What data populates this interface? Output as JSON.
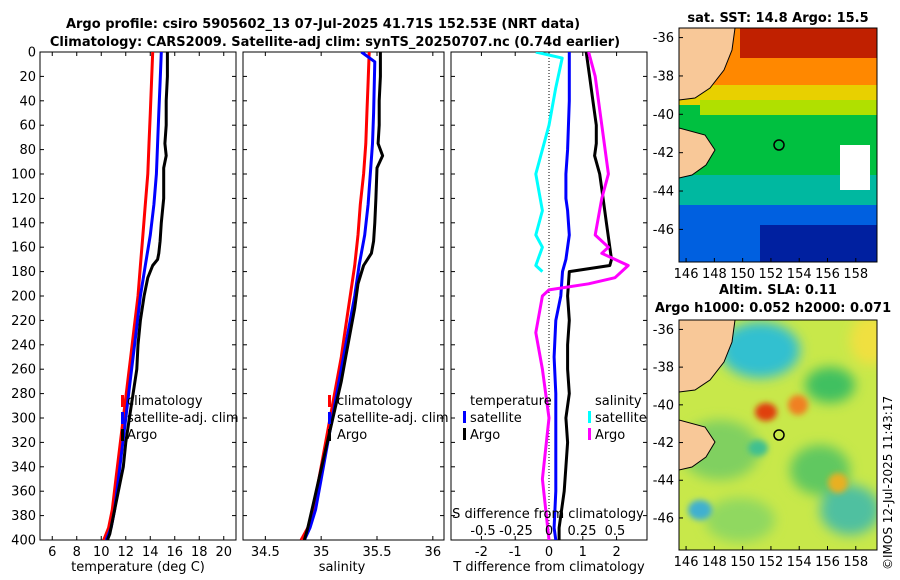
{
  "header": {
    "title_line1": "Argo profile: csiro 5905602_13 07-Jul-2025 41.71S 152.53E (NRT data)",
    "title_line2": "Climatology: CARS2009. Satellite-adj clim: synTS_20250707.nc (0.74d earlier)"
  },
  "credit": "©IMOS 12-Jul-2025 11:43:17",
  "colors": {
    "climatology": "#ff0000",
    "satellite": "#0000ff",
    "argo": "#000000",
    "sal_satellite": "#00ffff",
    "sal_diff": "#ff00ff",
    "land": "#f8c898"
  },
  "chart_data": [
    {
      "id": "temperature",
      "type": "line",
      "xlabel": "temperature (deg C)",
      "ylabel": "",
      "xlim": [
        5,
        21
      ],
      "ylim": [
        0,
        400
      ],
      "y_reversed": true,
      "xticks": [
        6,
        8,
        10,
        12,
        14,
        16,
        18,
        20
      ],
      "xtick_labels": [
        "6",
        "8",
        "10",
        "12",
        "14",
        "16",
        "18",
        "20"
      ],
      "yticks": [
        0,
        20,
        40,
        60,
        80,
        100,
        120,
        140,
        160,
        180,
        200,
        220,
        240,
        260,
        280,
        300,
        320,
        340,
        360,
        380,
        400
      ],
      "ytick_labels": [
        "0",
        "20",
        "40",
        "60",
        "80",
        "100",
        "120",
        "140",
        "160",
        "180",
        "200",
        "220",
        "240",
        "260",
        "280",
        "300",
        "320",
        "340",
        "360",
        "380",
        "400"
      ],
      "legend": {
        "position": "center-right",
        "entries": [
          "climatology",
          "satellite-adj. clim",
          "Argo"
        ]
      },
      "series": [
        {
          "name": "climatology",
          "color": "#ff0000",
          "x": [
            14.2,
            14.1,
            14.0,
            13.9,
            13.8,
            13.6,
            13.4,
            13.2,
            13.0,
            12.7,
            12.4,
            12.1,
            11.8,
            11.5,
            11.2,
            10.9,
            10.6,
            10.2
          ],
          "y": [
            0,
            25,
            50,
            75,
            100,
            125,
            150,
            175,
            200,
            225,
            250,
            275,
            300,
            325,
            350,
            375,
            390,
            400
          ]
        },
        {
          "name": "satellite-adj. clim",
          "color": "#0000ff",
          "x": [
            14.9,
            14.8,
            14.7,
            14.6,
            14.5,
            14.3,
            14.0,
            13.6,
            13.2,
            12.9,
            12.6,
            12.3,
            12.0,
            11.7,
            11.4,
            11.1,
            10.8,
            10.4
          ],
          "y": [
            0,
            25,
            50,
            75,
            100,
            125,
            150,
            175,
            200,
            225,
            250,
            275,
            300,
            325,
            350,
            375,
            390,
            400
          ]
        },
        {
          "name": "Argo",
          "color": "#000000",
          "x": [
            15.4,
            15.4,
            15.3,
            15.3,
            15.2,
            15.3,
            15.1,
            15.1,
            14.9,
            14.8,
            14.7,
            14.6,
            14.2,
            13.8,
            13.5,
            13.2,
            13.0,
            12.9,
            12.6,
            12.3,
            12.0,
            11.8,
            11.5,
            11.2,
            10.9,
            10.7,
            10.5
          ],
          "y": [
            0,
            20,
            40,
            60,
            75,
            85,
            95,
            120,
            140,
            155,
            165,
            170,
            175,
            185,
            200,
            220,
            240,
            260,
            280,
            300,
            320,
            340,
            355,
            370,
            385,
            395,
            400
          ]
        }
      ]
    },
    {
      "id": "salinity",
      "type": "line",
      "xlabel": "salinity",
      "xlim": [
        34.3,
        36.1
      ],
      "ylim": [
        0,
        400
      ],
      "y_reversed": true,
      "xticks": [
        34.5,
        35,
        35.5,
        36
      ],
      "xtick_labels": [
        "34.5",
        "35",
        "35.5",
        "36"
      ],
      "legend": {
        "position": "center-right",
        "entries": [
          "climatology",
          "satellite-adj. clim",
          "Argo"
        ]
      },
      "series": [
        {
          "name": "climatology",
          "color": "#ff0000",
          "x": [
            35.43,
            35.42,
            35.41,
            35.4,
            35.38,
            35.35,
            35.33,
            35.3,
            35.26,
            35.22,
            35.18,
            35.13,
            35.08,
            35.03,
            34.98,
            34.93,
            34.88,
            34.82
          ],
          "y": [
            0,
            25,
            50,
            75,
            100,
            125,
            150,
            175,
            200,
            225,
            250,
            275,
            300,
            325,
            350,
            375,
            390,
            400
          ]
        },
        {
          "name": "satellite-adj. clim",
          "color": "#0000ff",
          "x": [
            35.36,
            35.48,
            35.47,
            35.46,
            35.44,
            35.42,
            35.39,
            35.34,
            35.3,
            35.25,
            35.2,
            35.15,
            35.1,
            35.05,
            35.0,
            34.95,
            34.9,
            34.85
          ],
          "y": [
            0,
            8,
            50,
            75,
            100,
            125,
            150,
            175,
            200,
            225,
            250,
            275,
            300,
            325,
            350,
            375,
            390,
            400
          ]
        },
        {
          "name": "Argo",
          "color": "#000000",
          "x": [
            35.53,
            35.53,
            35.52,
            35.52,
            35.51,
            35.55,
            35.5,
            35.49,
            35.48,
            35.47,
            35.45,
            35.38,
            35.33,
            35.3,
            35.26,
            35.22,
            35.18,
            35.13,
            35.08,
            35.03,
            34.98,
            34.93,
            34.88,
            34.85
          ],
          "y": [
            0,
            20,
            40,
            60,
            75,
            85,
            95,
            120,
            140,
            155,
            165,
            175,
            190,
            210,
            230,
            250,
            270,
            290,
            310,
            330,
            350,
            370,
            390,
            400
          ]
        }
      ]
    },
    {
      "id": "difference",
      "type": "line",
      "xlabel": "T difference from climatology",
      "top_axis_label": "S difference from climatology",
      "xlim": [
        -2.9,
        2.9
      ],
      "ylim": [
        0,
        400
      ],
      "y_reversed": true,
      "xticks": [
        -2,
        -1,
        0,
        1,
        2
      ],
      "xtick_labels": [
        "-2",
        "-1",
        "0",
        "1",
        "2"
      ],
      "s_xticks": [
        -0.5,
        -0.25,
        0,
        0.25,
        0.5
      ],
      "s_xtick_labels": [
        "-0.5",
        "-0.25",
        "0",
        "0.25",
        "0.5"
      ],
      "legend_temperature": {
        "title": "temperature",
        "entries": [
          "satellite",
          "Argo"
        ]
      },
      "legend_salinity": {
        "title": "salinity",
        "entries": [
          "satellite",
          "Argo"
        ]
      },
      "series": [
        {
          "name": "temperature satellite",
          "color": "#0000ff",
          "x": [
            0.6,
            0.6,
            0.55,
            0.5,
            0.5,
            0.55,
            0.6,
            0.5,
            0.4,
            0.35,
            0.2,
            0.15,
            0.2,
            0.2,
            0.2,
            0.2,
            0.15,
            0.2
          ],
          "y": [
            0,
            40,
            80,
            100,
            120,
            130,
            150,
            170,
            180,
            200,
            220,
            250,
            280,
            300,
            330,
            360,
            390,
            400
          ]
        },
        {
          "name": "temperature Argo",
          "color": "#000000",
          "x": [
            1.1,
            1.2,
            1.3,
            1.4,
            1.4,
            1.35,
            1.5,
            1.6,
            1.7,
            1.8,
            1.85,
            1.8,
            0.6,
            0.55,
            0.6,
            0.55,
            0.55,
            0.6,
            0.5,
            0.55,
            0.5,
            0.45,
            0.3,
            0.3
          ],
          "y": [
            0,
            20,
            40,
            60,
            75,
            85,
            100,
            120,
            140,
            160,
            170,
            175,
            180,
            200,
            220,
            240,
            260,
            280,
            300,
            320,
            340,
            360,
            390,
            400
          ]
        },
        {
          "name": "salinity satellite",
          "color": "#00ffff",
          "x": [
            -0.1,
            0.1,
            0.05,
            0.0,
            -0.1,
            -0.05,
            -0.1,
            -0.05,
            -0.1,
            -0.05
          ],
          "y": [
            0,
            5,
            30,
            60,
            100,
            130,
            150,
            160,
            175,
            180
          ]
        },
        {
          "name": "salinity Argo",
          "color": "#ff00ff",
          "x": [
            0.3,
            0.35,
            0.4,
            0.45,
            0.4,
            0.35,
            0.45,
            0.4,
            0.6,
            0.5,
            0.3,
            0.0,
            -0.05,
            -0.1,
            -0.05,
            0.0,
            -0.05,
            0.0
          ],
          "y": [
            0,
            20,
            60,
            100,
            120,
            150,
            160,
            165,
            175,
            185,
            190,
            195,
            200,
            230,
            260,
            300,
            350,
            400
          ]
        }
      ]
    },
    {
      "id": "sst_map",
      "type": "heatmap",
      "title": "sat. SST: 14.8 Argo: 15.5",
      "xticks": [
        146,
        148,
        150,
        152,
        154,
        156,
        158
      ],
      "xtick_labels": [
        "146",
        "148",
        "150",
        "152",
        "154",
        "156",
        "158"
      ],
      "yticks": [
        -36,
        -38,
        -40,
        -42,
        -44,
        -46
      ],
      "ytick_labels": [
        "-36",
        "-38",
        "-40",
        "-42",
        "-44",
        "-46"
      ],
      "xlim": [
        145.5,
        159.5
      ],
      "ylim": [
        -47.7,
        -35.5
      ],
      "argo_position": [
        152.53,
        -41.71
      ],
      "colormap": "jet",
      "values_desc": "warm (red) in north, cool (blue) in south"
    },
    {
      "id": "sla_map",
      "type": "heatmap",
      "title_line1": "Altim. SLA: 0.11",
      "title_line2": "Argo h1000: 0.052 h2000: 0.071",
      "xticks": [
        146,
        148,
        150,
        152,
        154,
        156,
        158
      ],
      "xtick_labels": [
        "146",
        "148",
        "150",
        "152",
        "154",
        "156",
        "158"
      ],
      "yticks": [
        -36,
        -38,
        -40,
        -42,
        -44,
        -46
      ],
      "ytick_labels": [
        "-36",
        "-38",
        "-40",
        "-42",
        "-44",
        "-46"
      ],
      "xlim": [
        145.5,
        159.5
      ],
      "ylim": [
        -47.7,
        -35.5
      ],
      "argo_position": [
        152.53,
        -41.71
      ],
      "colormap": "jet"
    }
  ]
}
